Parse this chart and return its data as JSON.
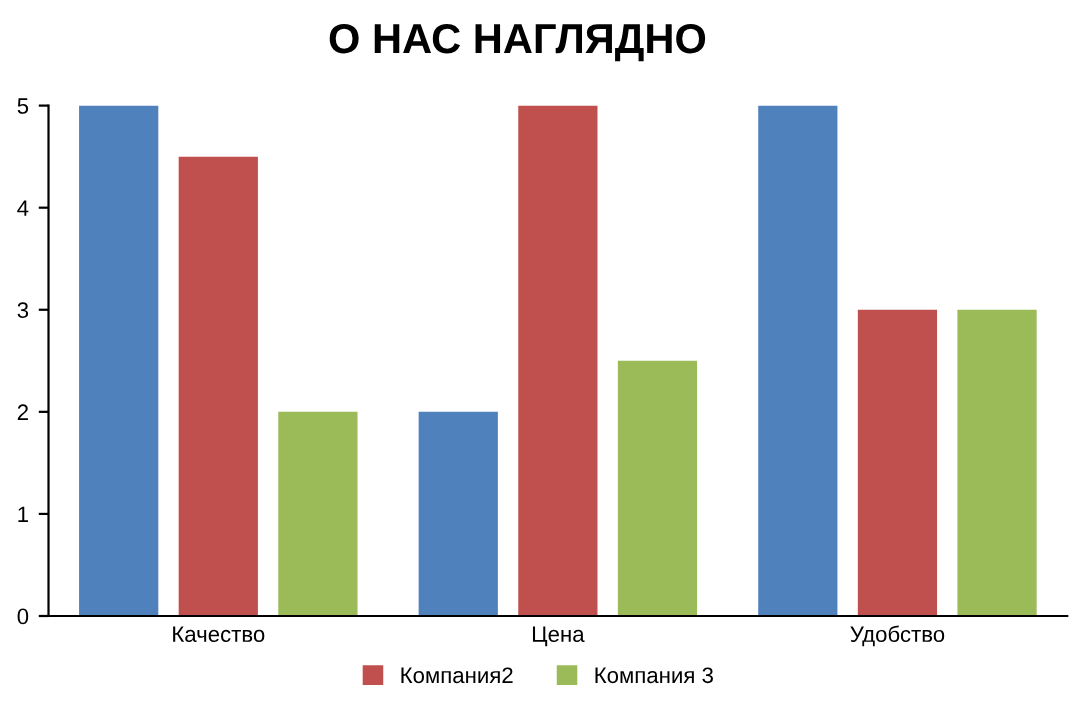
{
  "chart_data": {
    "type": "bar",
    "title": "О НАС НАГЛЯДНО",
    "categories": [
      "Качество",
      "Цена",
      "Удобство"
    ],
    "series": [
      {
        "color": "#4f81bd",
        "values": [
          5,
          2,
          5
        ]
      },
      {
        "name": "Компания2",
        "color": "#c0504d",
        "values": [
          4.5,
          5,
          3
        ]
      },
      {
        "name": "Компания 3",
        "color": "#9bbb59",
        "values": [
          2,
          2.5,
          3
        ]
      }
    ],
    "ylim": [
      0,
      5
    ],
    "yticks": [
      0,
      1,
      2,
      3,
      4,
      5
    ],
    "grid": false,
    "legend": "bottom"
  }
}
